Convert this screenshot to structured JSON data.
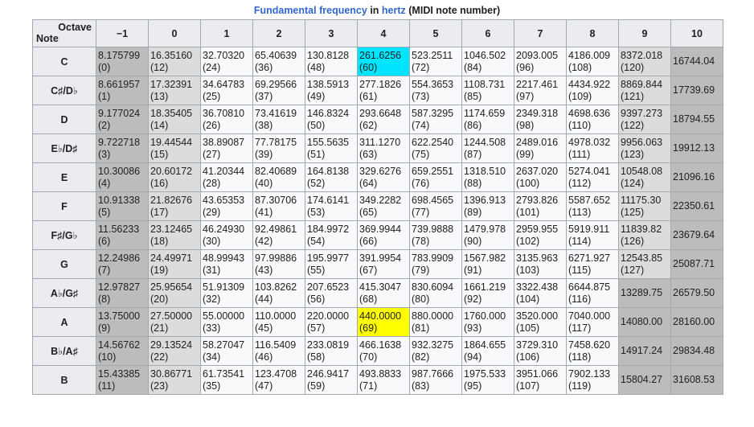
{
  "caption": {
    "part1": "Fundamental frequency",
    "part2": "in",
    "part3": "hertz",
    "part4": "(MIDI note number)"
  },
  "header": {
    "corner_octave": "Octave",
    "corner_note": "Note",
    "octaves": [
      "−1",
      "0",
      "1",
      "2",
      "3",
      "4",
      "5",
      "6",
      "7",
      "8",
      "9",
      "10"
    ]
  },
  "colors": {
    "header_bg": "#eaecf0",
    "border": "#a2a9b1",
    "octave_minus1_bg": "#bcbcbc",
    "octave_0_bg": "#dcdcdc",
    "midi_out_of_range_bg": "#bcbcbc",
    "cell_bg": "#f8f9fa",
    "middle_c_highlight": "#00e5ff",
    "a440_highlight": "#ffff00",
    "caption_link": "#3366cc"
  },
  "rows": [
    {
      "note": "C",
      "cells": [
        {
          "f": "8.175799",
          "m": "(0)"
        },
        {
          "f": "16.35160",
          "m": "(12)"
        },
        {
          "f": "32.70320",
          "m": "(24)"
        },
        {
          "f": "65.40639",
          "m": "(36)"
        },
        {
          "f": "130.8128",
          "m": "(48)"
        },
        {
          "f": "261.6256",
          "m": "(60)"
        },
        {
          "f": "523.2511",
          "m": "(72)"
        },
        {
          "f": "1046.502",
          "m": "(84)"
        },
        {
          "f": "2093.005",
          "m": "(96)"
        },
        {
          "f": "4186.009",
          "m": "(108)"
        },
        {
          "f": "8372.018",
          "m": "(120)"
        },
        {
          "f": "16744.04",
          "m": ""
        }
      ]
    },
    {
      "note": "C♯/D♭",
      "cells": [
        {
          "f": "8.661957",
          "m": "(1)"
        },
        {
          "f": "17.32391",
          "m": "(13)"
        },
        {
          "f": "34.64783",
          "m": "(25)"
        },
        {
          "f": "69.29566",
          "m": "(37)"
        },
        {
          "f": "138.5913",
          "m": "(49)"
        },
        {
          "f": "277.1826",
          "m": "(61)"
        },
        {
          "f": "554.3653",
          "m": "(73)"
        },
        {
          "f": "1108.731",
          "m": "(85)"
        },
        {
          "f": "2217.461",
          "m": "(97)"
        },
        {
          "f": "4434.922",
          "m": "(109)"
        },
        {
          "f": "8869.844",
          "m": "(121)"
        },
        {
          "f": "17739.69",
          "m": ""
        }
      ]
    },
    {
      "note": "D",
      "cells": [
        {
          "f": "9.177024",
          "m": "(2)"
        },
        {
          "f": "18.35405",
          "m": "(14)"
        },
        {
          "f": "36.70810",
          "m": "(26)"
        },
        {
          "f": "73.41619",
          "m": "(38)"
        },
        {
          "f": "146.8324",
          "m": "(50)"
        },
        {
          "f": "293.6648",
          "m": "(62)"
        },
        {
          "f": "587.3295",
          "m": "(74)"
        },
        {
          "f": "1174.659",
          "m": "(86)"
        },
        {
          "f": "2349.318",
          "m": "(98)"
        },
        {
          "f": "4698.636",
          "m": "(110)"
        },
        {
          "f": "9397.273",
          "m": "(122)"
        },
        {
          "f": "18794.55",
          "m": ""
        }
      ]
    },
    {
      "note": "E♭/D♯",
      "cells": [
        {
          "f": "9.722718",
          "m": "(3)"
        },
        {
          "f": "19.44544",
          "m": "(15)"
        },
        {
          "f": "38.89087",
          "m": "(27)"
        },
        {
          "f": "77.78175",
          "m": "(39)"
        },
        {
          "f": "155.5635",
          "m": "(51)"
        },
        {
          "f": "311.1270",
          "m": "(63)"
        },
        {
          "f": "622.2540",
          "m": "(75)"
        },
        {
          "f": "1244.508",
          "m": "(87)"
        },
        {
          "f": "2489.016",
          "m": "(99)"
        },
        {
          "f": "4978.032",
          "m": "(111)"
        },
        {
          "f": "9956.063",
          "m": "(123)"
        },
        {
          "f": "19912.13",
          "m": ""
        }
      ]
    },
    {
      "note": "E",
      "cells": [
        {
          "f": "10.30086",
          "m": "(4)"
        },
        {
          "f": "20.60172",
          "m": "(16)"
        },
        {
          "f": "41.20344",
          "m": "(28)"
        },
        {
          "f": "82.40689",
          "m": "(40)"
        },
        {
          "f": "164.8138",
          "m": "(52)"
        },
        {
          "f": "329.6276",
          "m": "(64)"
        },
        {
          "f": "659.2551",
          "m": "(76)"
        },
        {
          "f": "1318.510",
          "m": "(88)"
        },
        {
          "f": "2637.020",
          "m": "(100)"
        },
        {
          "f": "5274.041",
          "m": "(112)"
        },
        {
          "f": "10548.08",
          "m": "(124)"
        },
        {
          "f": "21096.16",
          "m": ""
        }
      ]
    },
    {
      "note": "F",
      "cells": [
        {
          "f": "10.91338",
          "m": "(5)"
        },
        {
          "f": "21.82676",
          "m": "(17)"
        },
        {
          "f": "43.65353",
          "m": "(29)"
        },
        {
          "f": "87.30706",
          "m": "(41)"
        },
        {
          "f": "174.6141",
          "m": "(53)"
        },
        {
          "f": "349.2282",
          "m": "(65)"
        },
        {
          "f": "698.4565",
          "m": "(77)"
        },
        {
          "f": "1396.913",
          "m": "(89)"
        },
        {
          "f": "2793.826",
          "m": "(101)"
        },
        {
          "f": "5587.652",
          "m": "(113)"
        },
        {
          "f": "11175.30",
          "m": "(125)"
        },
        {
          "f": "22350.61",
          "m": ""
        }
      ]
    },
    {
      "note": "F♯/G♭",
      "cells": [
        {
          "f": "11.56233",
          "m": "(6)"
        },
        {
          "f": "23.12465",
          "m": "(18)"
        },
        {
          "f": "46.24930",
          "m": "(30)"
        },
        {
          "f": "92.49861",
          "m": "(42)"
        },
        {
          "f": "184.9972",
          "m": "(54)"
        },
        {
          "f": "369.9944",
          "m": "(66)"
        },
        {
          "f": "739.9888",
          "m": "(78)"
        },
        {
          "f": "1479.978",
          "m": "(90)"
        },
        {
          "f": "2959.955",
          "m": "(102)"
        },
        {
          "f": "5919.911",
          "m": "(114)"
        },
        {
          "f": "11839.82",
          "m": "(126)"
        },
        {
          "f": "23679.64",
          "m": ""
        }
      ]
    },
    {
      "note": "G",
      "cells": [
        {
          "f": "12.24986",
          "m": "(7)"
        },
        {
          "f": "24.49971",
          "m": "(19)"
        },
        {
          "f": "48.99943",
          "m": "(31)"
        },
        {
          "f": "97.99886",
          "m": "(43)"
        },
        {
          "f": "195.9977",
          "m": "(55)"
        },
        {
          "f": "391.9954",
          "m": "(67)"
        },
        {
          "f": "783.9909",
          "m": "(79)"
        },
        {
          "f": "1567.982",
          "m": "(91)"
        },
        {
          "f": "3135.963",
          "m": "(103)"
        },
        {
          "f": "6271.927",
          "m": "(115)"
        },
        {
          "f": "12543.85",
          "m": "(127)"
        },
        {
          "f": "25087.71",
          "m": ""
        }
      ]
    },
    {
      "note": "A♭/G♯",
      "cells": [
        {
          "f": "12.97827",
          "m": "(8)"
        },
        {
          "f": "25.95654",
          "m": "(20)"
        },
        {
          "f": "51.91309",
          "m": "(32)"
        },
        {
          "f": "103.8262",
          "m": "(44)"
        },
        {
          "f": "207.6523",
          "m": "(56)"
        },
        {
          "f": "415.3047",
          "m": "(68)"
        },
        {
          "f": "830.6094",
          "m": "(80)"
        },
        {
          "f": "1661.219",
          "m": "(92)"
        },
        {
          "f": "3322.438",
          "m": "(104)"
        },
        {
          "f": "6644.875",
          "m": "(116)"
        },
        {
          "f": "13289.75",
          "m": ""
        },
        {
          "f": "26579.50",
          "m": ""
        }
      ]
    },
    {
      "note": "A",
      "cells": [
        {
          "f": "13.75000",
          "m": "(9)"
        },
        {
          "f": "27.50000",
          "m": "(21)"
        },
        {
          "f": "55.00000",
          "m": "(33)"
        },
        {
          "f": "110.0000",
          "m": "(45)"
        },
        {
          "f": "220.0000",
          "m": "(57)"
        },
        {
          "f": "440.0000",
          "m": "(69)"
        },
        {
          "f": "880.0000",
          "m": "(81)"
        },
        {
          "f": "1760.000",
          "m": "(93)"
        },
        {
          "f": "3520.000",
          "m": "(105)"
        },
        {
          "f": "7040.000",
          "m": "(117)"
        },
        {
          "f": "14080.00",
          "m": ""
        },
        {
          "f": "28160.00",
          "m": ""
        }
      ]
    },
    {
      "note": "B♭/A♯",
      "cells": [
        {
          "f": "14.56762",
          "m": "(10)"
        },
        {
          "f": "29.13524",
          "m": "(22)"
        },
        {
          "f": "58.27047",
          "m": "(34)"
        },
        {
          "f": "116.5409",
          "m": "(46)"
        },
        {
          "f": "233.0819",
          "m": "(58)"
        },
        {
          "f": "466.1638",
          "m": "(70)"
        },
        {
          "f": "932.3275",
          "m": "(82)"
        },
        {
          "f": "1864.655",
          "m": "(94)"
        },
        {
          "f": "3729.310",
          "m": "(106)"
        },
        {
          "f": "7458.620",
          "m": "(118)"
        },
        {
          "f": "14917.24",
          "m": ""
        },
        {
          "f": "29834.48",
          "m": ""
        }
      ]
    },
    {
      "note": "B",
      "cells": [
        {
          "f": "15.43385",
          "m": "(11)"
        },
        {
          "f": "30.86771",
          "m": "(23)"
        },
        {
          "f": "61.73541",
          "m": "(35)"
        },
        {
          "f": "123.4708",
          "m": "(47)"
        },
        {
          "f": "246.9417",
          "m": "(59)"
        },
        {
          "f": "493.8833",
          "m": "(71)"
        },
        {
          "f": "987.7666",
          "m": "(83)"
        },
        {
          "f": "1975.533",
          "m": "(95)"
        },
        {
          "f": "3951.066",
          "m": "(107)"
        },
        {
          "f": "7902.133",
          "m": "(119)"
        },
        {
          "f": "15804.27",
          "m": ""
        },
        {
          "f": "31608.53",
          "m": ""
        }
      ]
    }
  ],
  "highlights": {
    "middle_c": {
      "row": 0,
      "col": 5
    },
    "a440": {
      "row": 9,
      "col": 5
    }
  }
}
